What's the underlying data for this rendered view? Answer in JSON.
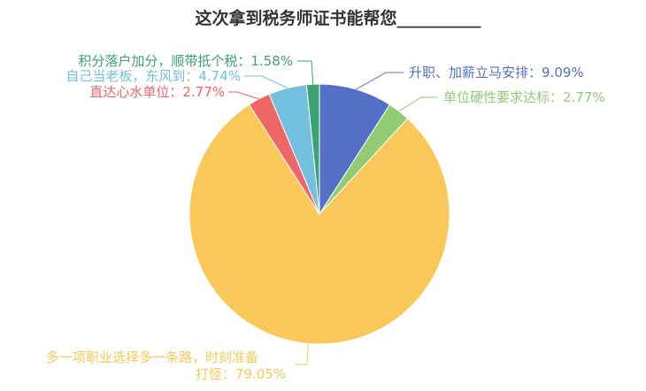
{
  "chart_data": {
    "type": "pie",
    "title": "这次拿到税务师证书能帮您__________",
    "slices": [
      {
        "label": "升职、加薪立马安排",
        "value": 9.09,
        "display": "9.09%",
        "color": "#5470c6"
      },
      {
        "label": "单位硬性要求达标",
        "value": 2.77,
        "display": "2.77%",
        "color": "#91cc75"
      },
      {
        "label": "多一项职业选择多一条路，时刻准备打怪",
        "value": 79.05,
        "display": "79.05%",
        "color": "#fac858"
      },
      {
        "label": "直达心水单位",
        "value": 2.77,
        "display": "2.77%",
        "color": "#ee6666"
      },
      {
        "label": "自己当老板，东风到",
        "value": 4.74,
        "display": "4.74%",
        "color": "#73c0de"
      },
      {
        "label": "积分落户加分，顺带抵个税",
        "value": 1.58,
        "display": "1.58%",
        "color": "#3ba272"
      }
    ]
  }
}
